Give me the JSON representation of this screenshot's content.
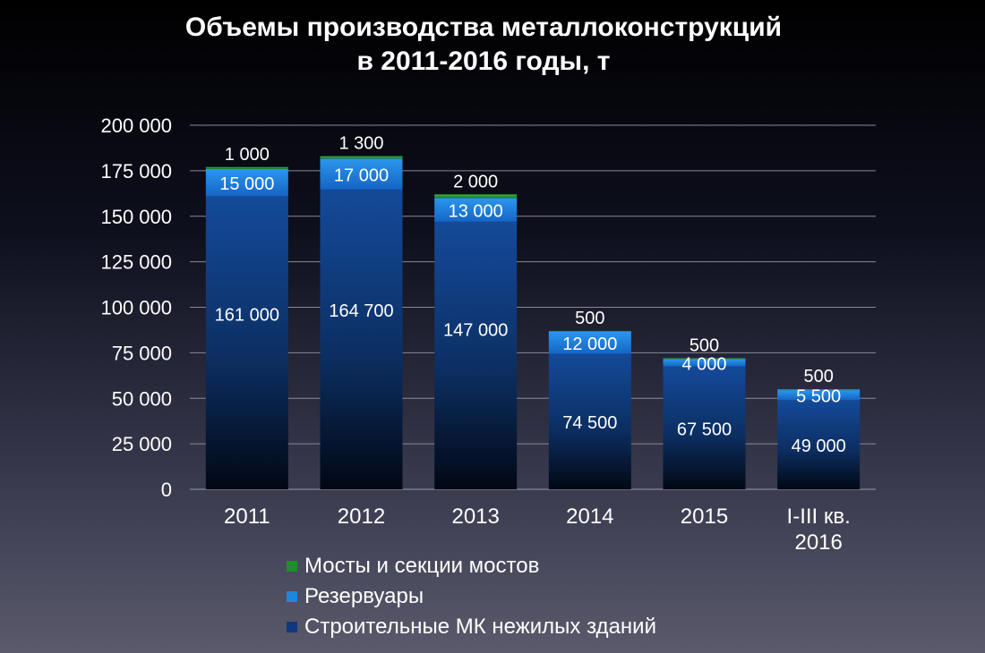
{
  "title_line1": "Объемы производства металлоконструкций",
  "title_line2": "в 2011-2016 годы, т",
  "chart_data": {
    "type": "bar",
    "stacked": true,
    "categories": [
      "2011",
      "2012",
      "2013",
      "2014",
      "2015",
      "I-III кв. 2016"
    ],
    "series": [
      {
        "name": "Строительные МК нежилых зданий",
        "values": [
          161000,
          164700,
          147000,
          74500,
          67500,
          49000
        ],
        "labels": [
          "161 000",
          "164 700",
          "147 000",
          "74 500",
          "67 500",
          "49 000"
        ],
        "color": "#0d3a7c"
      },
      {
        "name": "Резервуары",
        "values": [
          15000,
          17000,
          13000,
          12000,
          4000,
          5500
        ],
        "labels": [
          "15 000",
          "17 000",
          "13 000",
          "12 000",
          "4 000",
          "5 500"
        ],
        "color": "#1f86e0"
      },
      {
        "name": "Мосты и секции мостов",
        "values": [
          1000,
          1300,
          2000,
          500,
          500,
          500
        ],
        "labels": [
          "1 000",
          "1 300",
          "2 000",
          "500",
          "500",
          "500"
        ],
        "color": "#1f8f2e"
      }
    ],
    "ylim": [
      0,
      200000
    ],
    "yticks": [
      0,
      25000,
      50000,
      75000,
      100000,
      125000,
      150000,
      175000,
      200000
    ],
    "ytick_labels": [
      "0",
      "25 000",
      "50 000",
      "75 000",
      "100 000",
      "125 000",
      "150 000",
      "175 000",
      "200 000"
    ],
    "xlabel": "",
    "ylabel": "",
    "grid": true,
    "legend_position": "bottom"
  },
  "legend": {
    "items": [
      {
        "label": "Мосты и секции мостов",
        "color": "#1f8f2e"
      },
      {
        "label": "Резервуары",
        "color": "#1f86e0"
      },
      {
        "label": "Строительные МК нежилых зданий",
        "color": "#0d3a7c"
      }
    ]
  }
}
